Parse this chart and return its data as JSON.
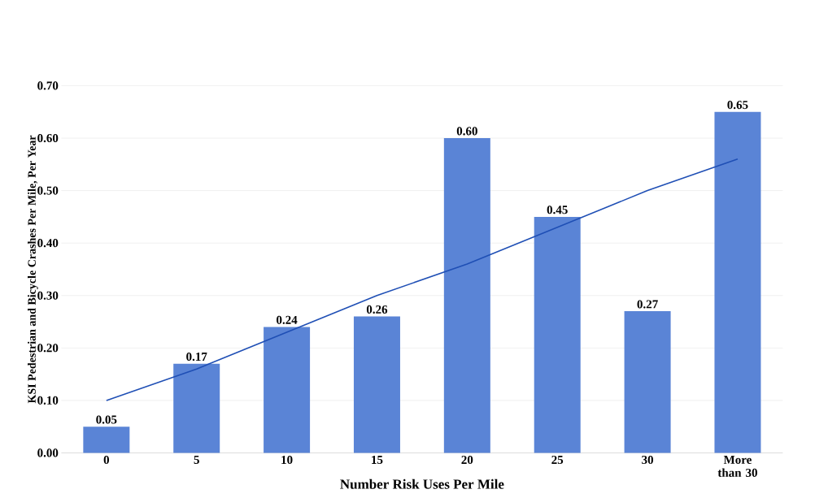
{
  "chart_data": {
    "type": "bar",
    "xlabel": "Number Risk Uses Per Mile",
    "ylabel": "KSI Pedestrian and Bicycle Crashes Per Mile, Per Year",
    "categories": [
      "0",
      "5",
      "10",
      "15",
      "20",
      "25",
      "30",
      "More than 30"
    ],
    "series": [
      {
        "color": "#5a84d6",
        "values": [
          0.05,
          0.17,
          0.24,
          0.26,
          0.6,
          0.45,
          0.27,
          0.65
        ],
        "value_labels": [
          "0.05",
          "0.17",
          "0.24",
          "0.26",
          "0.60",
          "0.45",
          "0.27",
          "0.65"
        ]
      },
      {
        "type": "line",
        "color": "#1f4fb5",
        "values": [
          0.1,
          0.16,
          0.23,
          0.3,
          0.36,
          0.43,
          0.5,
          0.56
        ]
      }
    ],
    "ylim": [
      0,
      0.7
    ],
    "yticks": [
      {
        "value": 0,
        "label": "0.00"
      },
      {
        "value": 0.1,
        "label": "0.10"
      },
      {
        "value": 0.2,
        "label": "0.20"
      },
      {
        "value": 0.3,
        "label": "0.30"
      },
      {
        "value": 0.4,
        "label": "0.40"
      },
      {
        "value": 0.5,
        "label": "0.50"
      },
      {
        "value": 0.6,
        "label": "0.60"
      },
      {
        "value": 0.7,
        "label": "0.70"
      }
    ],
    "grid": "y"
  }
}
